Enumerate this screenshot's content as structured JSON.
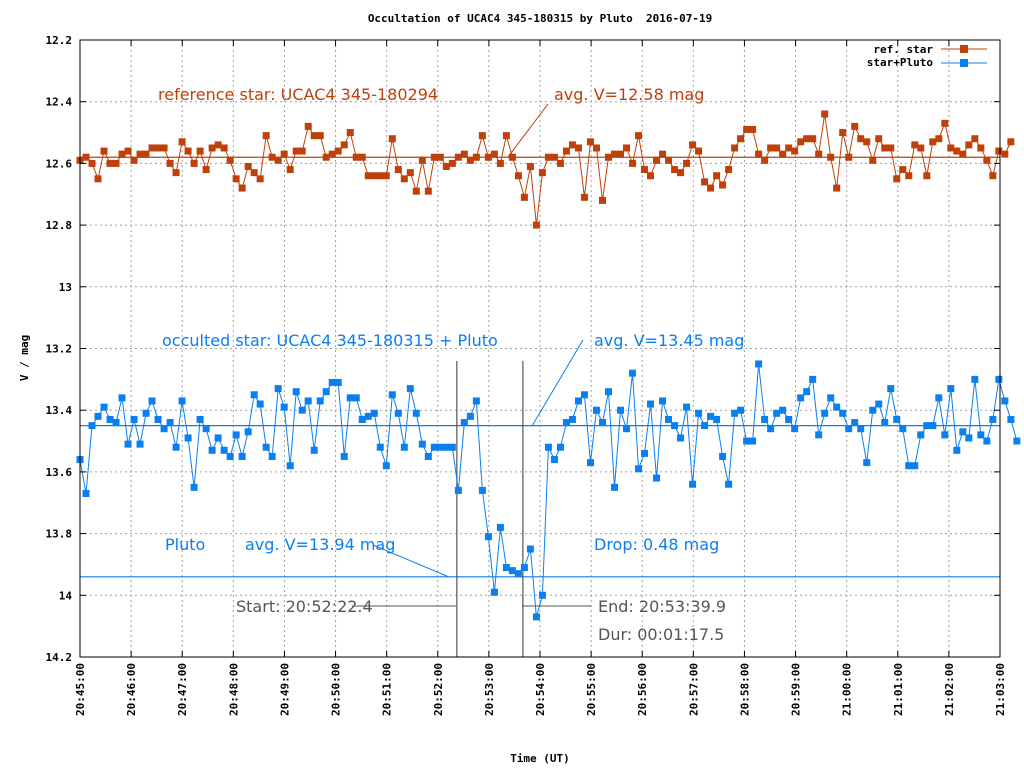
{
  "chart_data": {
    "type": "line",
    "title": "Occultation of UCAC4 345-180315 by Pluto  2016-07-19",
    "xlabel": "Time (UT)",
    "ylabel": "V / mag",
    "xlim_seconds_after_20_45_00": [
      0,
      1080
    ],
    "ylim": [
      12.2,
      14.2
    ],
    "y_inverted": true,
    "grid": true,
    "legend_position": "top-right",
    "x_ticks": [
      "20:45:00",
      "20:46:00",
      "20:47:00",
      "20:48:00",
      "20:49:00",
      "20:50:00",
      "20:51:00",
      "20:52:00",
      "20:53:00",
      "20:54:00",
      "20:55:00",
      "20:56:00",
      "20:57:00",
      "20:58:00",
      "20:59:00",
      "21:00:00",
      "21:01:00",
      "21:02:00",
      "21:03:00"
    ],
    "y_ticks": [
      "12.2",
      "12.4",
      "12.6",
      "12.8",
      "13",
      "13.2",
      "13.4",
      "13.6",
      "13.8",
      "14",
      "14.2"
    ],
    "y_tick_values": [
      12.2,
      12.4,
      12.6,
      12.8,
      13.0,
      13.2,
      13.4,
      13.6,
      13.8,
      14.0,
      14.2
    ],
    "colors": {
      "ref": "#c0400a",
      "target": "#0a7ff0",
      "event": "#555555"
    },
    "series": [
      {
        "name": "ref. star",
        "t_step_seconds": 7.05,
        "values": [
          12.59,
          12.58,
          12.6,
          12.65,
          12.56,
          12.6,
          12.6,
          12.57,
          12.56,
          12.59,
          12.57,
          12.57,
          12.55,
          12.55,
          12.55,
          12.6,
          12.63,
          12.53,
          12.56,
          12.6,
          12.56,
          12.62,
          12.55,
          12.54,
          12.55,
          12.59,
          12.65,
          12.68,
          12.61,
          12.63,
          12.65,
          12.51,
          12.58,
          12.59,
          12.57,
          12.62,
          12.56,
          12.56,
          12.48,
          12.51,
          12.51,
          12.58,
          12.57,
          12.56,
          12.54,
          12.5,
          12.58,
          12.58,
          12.64,
          12.64,
          12.64,
          12.64,
          12.52,
          12.62,
          12.65,
          12.63,
          12.69,
          12.59,
          12.69,
          12.58,
          12.58,
          12.61,
          12.6,
          12.58,
          12.57,
          12.59,
          12.58,
          12.51,
          12.58,
          12.57,
          12.6,
          12.51,
          12.58,
          12.64,
          12.71,
          12.61,
          12.8,
          12.63,
          12.58,
          12.58,
          12.6,
          12.56,
          12.54,
          12.55,
          12.71,
          12.53,
          12.55,
          12.72,
          12.58,
          12.57,
          12.57,
          12.55,
          12.6,
          12.51,
          12.62,
          12.64,
          12.59,
          12.57,
          12.59,
          12.62,
          12.63,
          12.6,
          12.54,
          12.56,
          12.66,
          12.68,
          12.64,
          12.67,
          12.62,
          12.55,
          12.52,
          12.49,
          12.49,
          12.57,
          12.59,
          12.55,
          12.55,
          12.57,
          12.55,
          12.56,
          12.53,
          12.52,
          12.52,
          12.57,
          12.44,
          12.58,
          12.68,
          12.5,
          12.58,
          12.48,
          12.52,
          12.53,
          12.59,
          12.52,
          12.55,
          12.55,
          12.65,
          12.62,
          12.64,
          12.54,
          12.55,
          12.64,
          12.53,
          12.52,
          12.47,
          12.55,
          12.56,
          12.57,
          12.54,
          12.52,
          12.55,
          12.59,
          12.64,
          12.56,
          12.57,
          12.53
        ],
        "avg": 12.58
      },
      {
        "name": "star+Pluto",
        "t_step_seconds": 7.05,
        "values": [
          13.56,
          13.67,
          13.45,
          13.42,
          13.39,
          13.43,
          13.44,
          13.36,
          13.51,
          13.43,
          13.51,
          13.41,
          13.37,
          13.43,
          13.46,
          13.44,
          13.52,
          13.37,
          13.49,
          13.65,
          13.43,
          13.46,
          13.53,
          13.49,
          13.53,
          13.55,
          13.48,
          13.55,
          13.47,
          13.35,
          13.38,
          13.52,
          13.55,
          13.33,
          13.39,
          13.58,
          13.34,
          13.4,
          13.37,
          13.53,
          13.37,
          13.34,
          13.31,
          13.31,
          13.55,
          13.36,
          13.36,
          13.43,
          13.42,
          13.41,
          13.52,
          13.58,
          13.35,
          13.41,
          13.52,
          13.33,
          13.41,
          13.51,
          13.55,
          13.52,
          13.52,
          13.52,
          13.52,
          13.66,
          13.44,
          13.42,
          13.37,
          13.66,
          13.81,
          13.99,
          13.78,
          13.91,
          13.92,
          13.93,
          13.91,
          13.85,
          14.07,
          14.0,
          13.52,
          13.56,
          13.52,
          13.44,
          13.43,
          13.37,
          13.35,
          13.57,
          13.4,
          13.44,
          13.34,
          13.65,
          13.4,
          13.46,
          13.28,
          13.59,
          13.54,
          13.38,
          13.62,
          13.37,
          13.43,
          13.45,
          13.49,
          13.39,
          13.64,
          13.41,
          13.45,
          13.42,
          13.43,
          13.55,
          13.64,
          13.41,
          13.4,
          13.5,
          13.5,
          13.25,
          13.43,
          13.46,
          13.41,
          13.4,
          13.43,
          13.46,
          13.36,
          13.34,
          13.3,
          13.48,
          13.41,
          13.36,
          13.39,
          13.41,
          13.46,
          13.44,
          13.46,
          13.57,
          13.4,
          13.38,
          13.44,
          13.33,
          13.43,
          13.46,
          13.58,
          13.58,
          13.48,
          13.45,
          13.45,
          13.36,
          13.48,
          13.33,
          13.53,
          13.47,
          13.49,
          13.3,
          13.48,
          13.5,
          13.43,
          13.3,
          13.37,
          13.43,
          13.5
        ],
        "avg": 13.45
      }
    ],
    "lines": {
      "ref_avg": 12.58,
      "target_avg": 13.45,
      "pluto_avg": 13.94,
      "start_seconds": 442.4,
      "end_seconds": 519.9,
      "start_end_marker_mag": 14.03
    },
    "annotations": {
      "ref_label": "reference star: UCAC4 345-180294",
      "ref_avg_label": "avg. V=12.58 mag",
      "target_label": "occulted star: UCAC4 345-180315 + Pluto",
      "target_avg_label": "avg. V=13.45 mag",
      "pluto_label": "Pluto",
      "pluto_avg_label": "avg. V=13.94 mag",
      "drop_label": "Drop: 0.48 mag",
      "start_label": "Start: 20:52:22.4",
      "end_label": "End: 20:53:39.9",
      "dur_label": "Dur: 00:01:17.5"
    }
  }
}
